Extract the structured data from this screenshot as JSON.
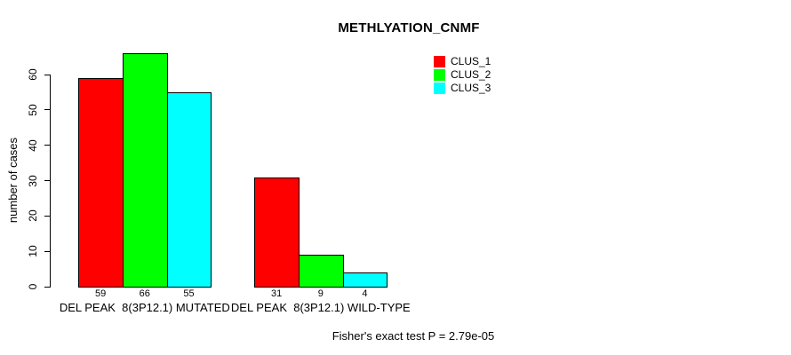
{
  "title": "METHLYATION_CNMF",
  "footnote": "Fisher's exact test P = 2.79e-05",
  "chart_data": {
    "type": "bar",
    "title": "METHLYATION_CNMF",
    "xlabel": "",
    "ylabel": "number of cases",
    "categories": [
      "DEL PEAK  8(3P12.1) MUTATED",
      "DEL PEAK  8(3P12.1) WILD-TYPE"
    ],
    "series": [
      {
        "name": "CLUS_1",
        "color": "#ff0000",
        "values": [
          59,
          31
        ]
      },
      {
        "name": "CLUS_2",
        "color": "#00ff00",
        "values": [
          66,
          9
        ]
      },
      {
        "name": "CLUS_3",
        "color": "#00ffff",
        "values": [
          55,
          4
        ]
      }
    ],
    "bar_value_labels_shown": true,
    "yticks": [
      0,
      10,
      20,
      30,
      40,
      50,
      60
    ],
    "ylim": [
      0,
      66
    ],
    "grid": false,
    "legend_position": "top-right",
    "annotation": "Fisher's exact test P = 2.79e-05",
    "colors": {
      "background": "#ffffff",
      "bar_border": "#000000",
      "axis": "#000000",
      "text": "#000000"
    }
  }
}
